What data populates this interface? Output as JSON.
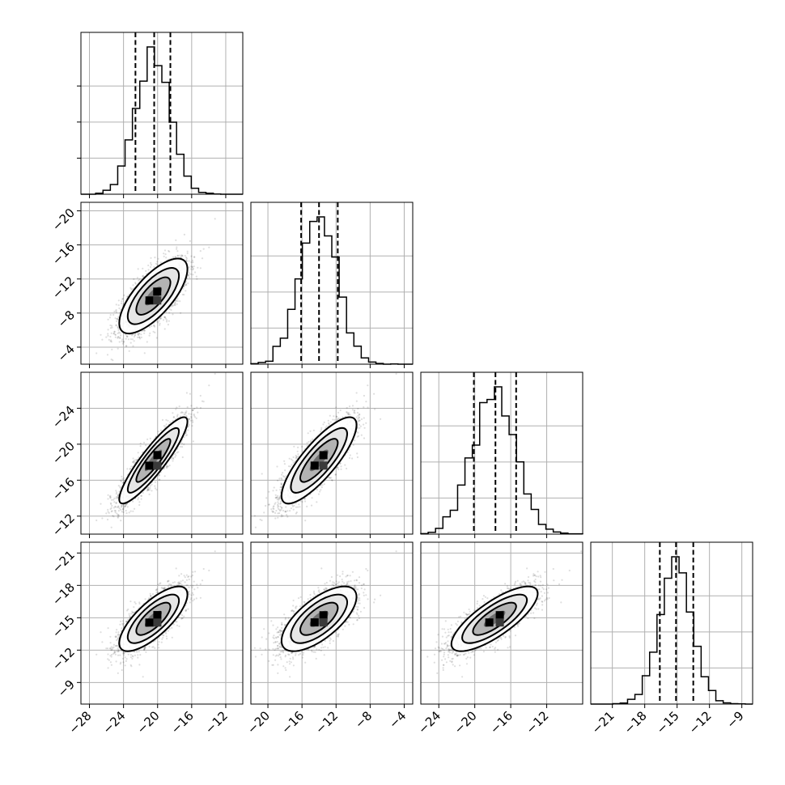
{
  "chart_data": {
    "type": "corner",
    "variables": [
      {
        "mean": -20.5,
        "std": 2.0,
        "quantiles": [
          -22.6,
          -20.4,
          -18.5
        ],
        "range": [
          -29,
          -10
        ],
        "ticks": [
          -28,
          -24,
          -20,
          -16,
          -12
        ]
      },
      {
        "mean": -14.0,
        "std": 2.2,
        "quantiles": [
          -16.1,
          -14.0,
          -11.8
        ],
        "range": [
          -22,
          -3
        ],
        "ticks": [
          -20,
          -16,
          -12,
          -8,
          -4
        ]
      },
      {
        "mean": -17.8,
        "std": 2.4,
        "quantiles": [
          -20.1,
          -17.7,
          -15.4
        ],
        "range": [
          -26,
          -8
        ],
        "ticks": [
          -24,
          -20,
          -16,
          -12
        ]
      },
      {
        "mean": -15.1,
        "std": 1.5,
        "quantiles": [
          -16.6,
          -15.1,
          -13.5
        ],
        "range": [
          -23,
          -8
        ],
        "ticks": [
          -21,
          -18,
          -15,
          -12,
          -9
        ]
      }
    ],
    "correlations": [
      [
        1,
        0.72,
        0.9,
        0.75
      ],
      [
        0.72,
        1,
        0.82,
        0.68
      ],
      [
        0.9,
        0.82,
        1,
        0.78
      ],
      [
        0.75,
        0.68,
        0.78,
        1
      ]
    ],
    "quantile_levels": [
      0.16,
      0.5,
      0.84
    ],
    "grid": true,
    "show_titles": false,
    "tick_labels": {
      "x": [
        [
          "−28",
          "−24",
          "−20",
          "−16",
          "−12"
        ],
        [
          "−20",
          "−16",
          "−12",
          "−8",
          "−4"
        ],
        [
          "−24",
          "−20",
          "−16",
          "−12"
        ],
        [
          "−21",
          "−18",
          "−15",
          "−12",
          "−9"
        ]
      ],
      "y": [
        [
          "−4",
          "−8",
          "−12",
          "−16",
          "−20"
        ],
        [
          "−12",
          "−16",
          "−20",
          "−24"
        ],
        [
          "−9",
          "−12",
          "−15",
          "−18",
          "−21"
        ]
      ]
    }
  }
}
